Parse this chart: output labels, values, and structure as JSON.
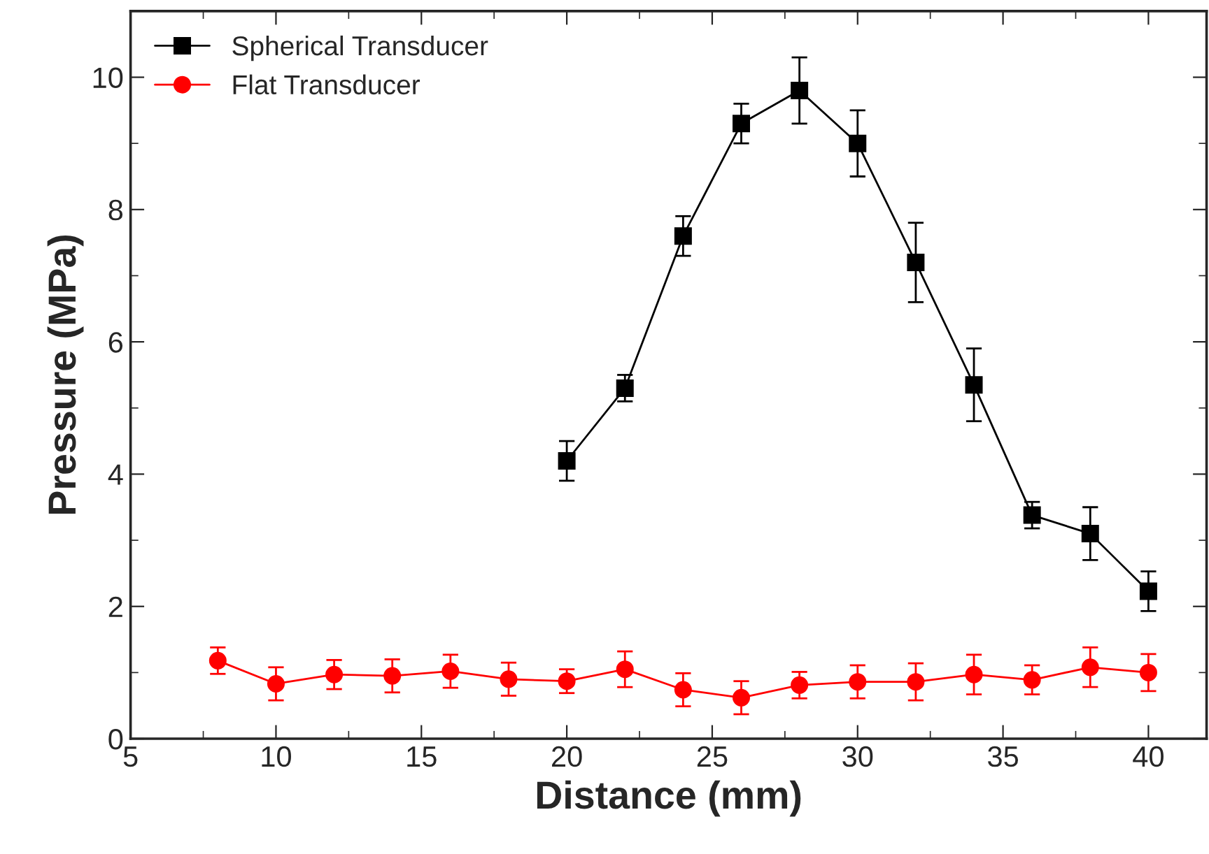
{
  "chart_data": {
    "type": "line",
    "xlabel": "Distance (mm)",
    "ylabel": "Pressure (MPa)",
    "xlim": [
      5,
      42
    ],
    "xticks": [
      5,
      10,
      15,
      20,
      25,
      30,
      35,
      40
    ],
    "ylim": [
      0,
      11
    ],
    "yticks": [
      0,
      2,
      4,
      6,
      8,
      10
    ],
    "legend": "top left",
    "grid": false,
    "series": [
      {
        "name": "Spherical Transducer",
        "color": "#000000",
        "marker": "square",
        "x": [
          20,
          22,
          24,
          26,
          28,
          30,
          32,
          34,
          36,
          38,
          40
        ],
        "values": [
          4.2,
          5.3,
          7.6,
          9.3,
          9.8,
          9.0,
          7.2,
          5.35,
          3.38,
          3.1,
          2.23
        ],
        "errors": [
          0.3,
          0.2,
          0.3,
          0.3,
          0.5,
          0.5,
          0.6,
          0.55,
          0.2,
          0.4,
          0.3
        ]
      },
      {
        "name": "Flat Transducer",
        "color": "#ff0000",
        "marker": "circle",
        "x": [
          8,
          10,
          12,
          14,
          16,
          18,
          20,
          22,
          24,
          26,
          28,
          30,
          32,
          34,
          36,
          38,
          40
        ],
        "values": [
          1.18,
          0.83,
          0.97,
          0.95,
          1.02,
          0.9,
          0.87,
          1.05,
          0.74,
          0.62,
          0.81,
          0.86,
          0.86,
          0.97,
          0.89,
          1.08,
          1.0
        ],
        "errors": [
          0.2,
          0.25,
          0.22,
          0.25,
          0.25,
          0.25,
          0.18,
          0.27,
          0.25,
          0.25,
          0.2,
          0.25,
          0.28,
          0.3,
          0.22,
          0.3,
          0.28
        ]
      }
    ]
  }
}
